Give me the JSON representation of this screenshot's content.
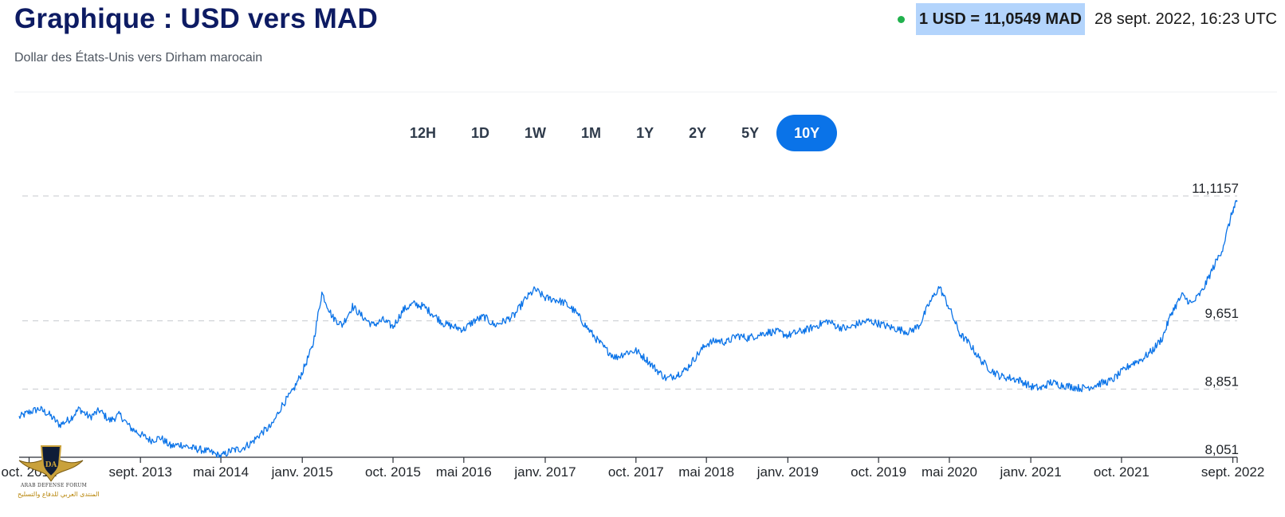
{
  "header": {
    "title": "Graphique : USD vers MAD",
    "subtitle": "Dollar des États-Unis vers Dirham marocain",
    "rate": "1 USD = 11,0549 MAD",
    "timestamp": "28 sept. 2022, 16:23 UTC",
    "live_color": "#21b14d"
  },
  "ranges": {
    "items": [
      "12H",
      "1D",
      "1W",
      "1M",
      "1Y",
      "2Y",
      "5Y",
      "10Y"
    ],
    "active": "10Y"
  },
  "watermark": {
    "line1": "ARAB DEFENSE FORUM",
    "line2": "المنتدى العربي للدفاع والتسليح"
  },
  "chart_data": {
    "type": "line",
    "series": [
      {
        "color": "#0a73e8",
        "x": [
          "2012-09",
          "2012-10",
          "2012-11",
          "2012-12",
          "2013-01",
          "2013-02",
          "2013-03",
          "2013-04",
          "2013-05",
          "2013-06",
          "2013-07",
          "2013-08",
          "2013-09",
          "2013-10",
          "2013-11",
          "2013-12",
          "2014-01",
          "2014-02",
          "2014-03",
          "2014-04",
          "2014-05",
          "2014-06",
          "2014-07",
          "2014-08",
          "2014-09",
          "2014-10",
          "2014-11",
          "2014-12",
          "2015-01",
          "2015-02",
          "2015-03",
          "2015-04",
          "2015-05",
          "2015-06",
          "2015-07",
          "2015-08",
          "2015-09",
          "2015-10",
          "2015-11",
          "2015-12",
          "2016-01",
          "2016-02",
          "2016-03",
          "2016-04",
          "2016-05",
          "2016-06",
          "2016-07",
          "2016-08",
          "2016-09",
          "2016-10",
          "2016-11",
          "2016-12",
          "2017-01",
          "2017-02",
          "2017-03",
          "2017-04",
          "2017-05",
          "2017-06",
          "2017-07",
          "2017-08",
          "2017-09",
          "2017-10",
          "2017-11",
          "2017-12",
          "2018-01",
          "2018-02",
          "2018-03",
          "2018-04",
          "2018-05",
          "2018-06",
          "2018-07",
          "2018-08",
          "2018-09",
          "2018-10",
          "2018-11",
          "2018-12",
          "2019-01",
          "2019-02",
          "2019-03",
          "2019-04",
          "2019-05",
          "2019-06",
          "2019-07",
          "2019-08",
          "2019-09",
          "2019-10",
          "2019-11",
          "2019-12",
          "2020-01",
          "2020-02",
          "2020-03",
          "2020-04",
          "2020-05",
          "2020-06",
          "2020-07",
          "2020-08",
          "2020-09",
          "2020-10",
          "2020-11",
          "2020-12",
          "2021-01",
          "2021-02",
          "2021-03",
          "2021-04",
          "2021-05",
          "2021-06",
          "2021-07",
          "2021-08",
          "2021-09",
          "2021-10",
          "2021-11",
          "2021-12",
          "2022-01",
          "2022-02",
          "2022-03",
          "2022-04",
          "2022-05",
          "2022-06",
          "2022-07",
          "2022-08",
          "2022-09",
          "2022-09-28"
        ],
        "y": [
          8.52,
          8.58,
          8.62,
          8.55,
          8.43,
          8.5,
          8.62,
          8.52,
          8.6,
          8.48,
          8.55,
          8.4,
          8.32,
          8.25,
          8.28,
          8.18,
          8.2,
          8.16,
          8.14,
          8.11,
          8.06,
          8.13,
          8.15,
          8.22,
          8.34,
          8.42,
          8.66,
          8.81,
          9.05,
          9.35,
          9.98,
          9.7,
          9.6,
          9.82,
          9.7,
          9.6,
          9.66,
          9.58,
          9.78,
          9.85,
          9.82,
          9.72,
          9.62,
          9.58,
          9.55,
          9.65,
          9.7,
          9.6,
          9.65,
          9.72,
          9.9,
          10.02,
          9.92,
          9.9,
          9.86,
          9.76,
          9.6,
          9.45,
          9.32,
          9.22,
          9.28,
          9.3,
          9.2,
          9.08,
          8.97,
          9.02,
          9.08,
          9.24,
          9.38,
          9.42,
          9.4,
          9.48,
          9.45,
          9.48,
          9.52,
          9.52,
          9.48,
          9.52,
          9.55,
          9.6,
          9.65,
          9.58,
          9.56,
          9.62,
          9.65,
          9.62,
          9.58,
          9.55,
          9.52,
          9.6,
          9.85,
          10.05,
          9.8,
          9.5,
          9.38,
          9.2,
          9.08,
          9.0,
          8.98,
          8.95,
          8.88,
          8.86,
          8.93,
          8.9,
          8.88,
          8.86,
          8.88,
          8.92,
          8.95,
          9.05,
          9.15,
          9.2,
          9.3,
          9.45,
          9.75,
          9.95,
          9.85,
          10.0,
          10.25,
          10.5,
          10.95,
          11.05
        ]
      }
    ],
    "yticks": [
      "8,051",
      "8,851",
      "9,651",
      "11,1157"
    ],
    "ytick_values": [
      8.051,
      8.851,
      9.651,
      11.1157
    ],
    "ylim": [
      8.051,
      11.1157
    ],
    "xticks": [
      "oct. 2012",
      "sept. 2013",
      "mai 2014",
      "janv. 2015",
      "oct. 2015",
      "mai 2016",
      "janv. 2017",
      "oct. 2017",
      "mai 2018",
      "janv. 2019",
      "oct. 2019",
      "mai 2020",
      "janv. 2021",
      "oct. 2021",
      "sept. 2022"
    ],
    "xtick_dates": [
      "2012-10",
      "2013-09",
      "2014-05",
      "2015-01",
      "2015-10",
      "2016-05",
      "2017-01",
      "2017-10",
      "2018-05",
      "2019-01",
      "2019-10",
      "2020-05",
      "2021-01",
      "2021-10",
      "2022-09"
    ],
    "grid": "horizontal dashed",
    "legend": "none"
  }
}
